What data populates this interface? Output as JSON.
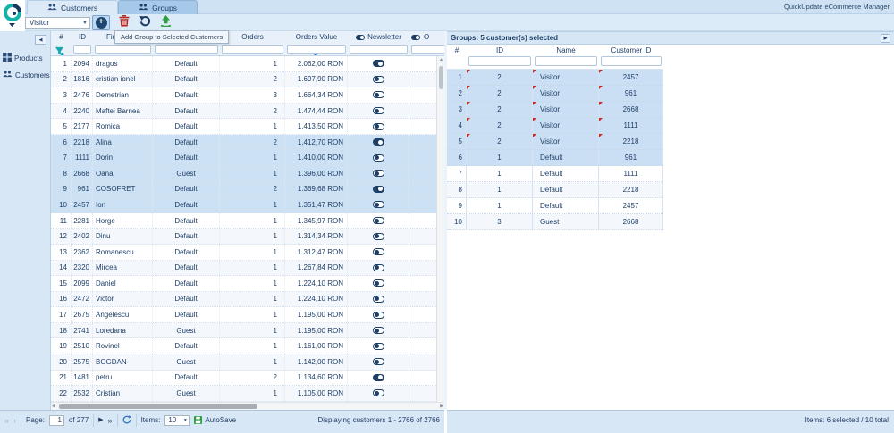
{
  "brand": "QuickUpdate eCommerce Manager",
  "tabs": {
    "customers": "Customers",
    "groups": "Groups"
  },
  "toolbar": {
    "group_combo_value": "Visitor",
    "tooltip": "Add Group to Selected Customers"
  },
  "sidebar": {
    "products": "Products",
    "customers": "Customers"
  },
  "customers_table": {
    "headers": {
      "num": "#",
      "id": "ID",
      "first_name": "First Name",
      "group": "Group",
      "orders": "Orders",
      "orders_value": "Orders Value",
      "newsletter": "Newsletter",
      "optin": "O"
    },
    "rows": [
      {
        "num": 1,
        "id": 2094,
        "name": "dragos",
        "group": "Default",
        "orders": 1,
        "value": "2.062,00 RON",
        "newsletter": true,
        "selected": false
      },
      {
        "num": 2,
        "id": 1816,
        "name": "cristian ionel",
        "group": "Default",
        "orders": 2,
        "value": "1.697,90 RON",
        "newsletter": false,
        "selected": false
      },
      {
        "num": 3,
        "id": 2476,
        "name": "Demetrian",
        "group": "Default",
        "orders": 3,
        "value": "1.664,34 RON",
        "newsletter": false,
        "selected": false
      },
      {
        "num": 4,
        "id": 2240,
        "name": "Maftei Barnea",
        "group": "Default",
        "orders": 2,
        "value": "1.474,44 RON",
        "newsletter": false,
        "selected": false
      },
      {
        "num": 5,
        "id": 2177,
        "name": "Romica",
        "group": "Default",
        "orders": 1,
        "value": "1.413,50 RON",
        "newsletter": false,
        "selected": false
      },
      {
        "num": 6,
        "id": 2218,
        "name": "Alina",
        "group": "Default",
        "orders": 2,
        "value": "1.412,70 RON",
        "newsletter": true,
        "selected": true
      },
      {
        "num": 7,
        "id": 1111,
        "name": "Dorin",
        "group": "Default",
        "orders": 1,
        "value": "1.410,00 RON",
        "newsletter": false,
        "selected": true
      },
      {
        "num": 8,
        "id": 2668,
        "name": "Oana",
        "group": "Guest",
        "orders": 1,
        "value": "1.396,00 RON",
        "newsletter": false,
        "selected": true
      },
      {
        "num": 9,
        "id": 961,
        "name": "COSOFRET",
        "group": "Default",
        "orders": 2,
        "value": "1.369,68 RON",
        "newsletter": true,
        "selected": true
      },
      {
        "num": 10,
        "id": 2457,
        "name": "Ion",
        "group": "Default",
        "orders": 1,
        "value": "1.351,47 RON",
        "newsletter": false,
        "selected": true
      },
      {
        "num": 11,
        "id": 2281,
        "name": "Horge",
        "group": "Default",
        "orders": 1,
        "value": "1.345,97 RON",
        "newsletter": false,
        "selected": false
      },
      {
        "num": 12,
        "id": 2402,
        "name": "Dinu",
        "group": "Default",
        "orders": 1,
        "value": "1.314,34 RON",
        "newsletter": false,
        "selected": false
      },
      {
        "num": 13,
        "id": 2362,
        "name": "Romanescu",
        "group": "Default",
        "orders": 1,
        "value": "1.312,47 RON",
        "newsletter": false,
        "selected": false
      },
      {
        "num": 14,
        "id": 2320,
        "name": "Mircea",
        "group": "Default",
        "orders": 1,
        "value": "1.267,84 RON",
        "newsletter": false,
        "selected": false
      },
      {
        "num": 15,
        "id": 2099,
        "name": "Daniel",
        "group": "Default",
        "orders": 1,
        "value": "1.224,10 RON",
        "newsletter": false,
        "selected": false
      },
      {
        "num": 16,
        "id": 2472,
        "name": "Victor",
        "group": "Default",
        "orders": 1,
        "value": "1.224,10 RON",
        "newsletter": false,
        "selected": false
      },
      {
        "num": 17,
        "id": 2675,
        "name": "Angelescu",
        "group": "Default",
        "orders": 1,
        "value": "1.195,00 RON",
        "newsletter": false,
        "selected": false
      },
      {
        "num": 18,
        "id": 2741,
        "name": "Loredana",
        "group": "Guest",
        "orders": 1,
        "value": "1.195,00 RON",
        "newsletter": false,
        "selected": false
      },
      {
        "num": 19,
        "id": 2510,
        "name": "Rovinel",
        "group": "Default",
        "orders": 1,
        "value": "1.161,00 RON",
        "newsletter": false,
        "selected": false
      },
      {
        "num": 20,
        "id": 2575,
        "name": "BOGDAN",
        "group": "Guest",
        "orders": 1,
        "value": "1.142,00 RON",
        "newsletter": false,
        "selected": false
      },
      {
        "num": 21,
        "id": 1481,
        "name": "petru",
        "group": "Default",
        "orders": 2,
        "value": "1.134,60 RON",
        "newsletter": true,
        "selected": false
      },
      {
        "num": 22,
        "id": 2532,
        "name": "Cristian",
        "group": "Guest",
        "orders": 1,
        "value": "1.105,00 RON",
        "newsletter": false,
        "selected": false
      }
    ]
  },
  "groups_panel": {
    "title": "Groups: 5 customer(s) selected",
    "headers": {
      "num": "#",
      "id": "ID",
      "name": "Name",
      "customer_id": "Customer ID"
    },
    "rows": [
      {
        "num": 1,
        "id": 2,
        "name": "Visitor",
        "customer_id": 2457,
        "modified": true,
        "selected": true
      },
      {
        "num": 2,
        "id": 2,
        "name": "Visitor",
        "customer_id": 961,
        "modified": true,
        "selected": true
      },
      {
        "num": 3,
        "id": 2,
        "name": "Visitor",
        "customer_id": 2668,
        "modified": true,
        "selected": true
      },
      {
        "num": 4,
        "id": 2,
        "name": "Visitor",
        "customer_id": 1111,
        "modified": true,
        "selected": true
      },
      {
        "num": 5,
        "id": 2,
        "name": "Visitor",
        "customer_id": 2218,
        "modified": true,
        "selected": true
      },
      {
        "num": 6,
        "id": 1,
        "name": "Default",
        "customer_id": 961,
        "modified": false,
        "selected": true
      },
      {
        "num": 7,
        "id": 1,
        "name": "Default",
        "customer_id": 1111,
        "modified": false,
        "selected": false
      },
      {
        "num": 8,
        "id": 1,
        "name": "Default",
        "customer_id": 2218,
        "modified": false,
        "selected": false
      },
      {
        "num": 9,
        "id": 1,
        "name": "Default",
        "customer_id": 2457,
        "modified": false,
        "selected": false
      },
      {
        "num": 10,
        "id": 3,
        "name": "Guest",
        "customer_id": 2668,
        "modified": false,
        "selected": false
      }
    ],
    "status": "Items: 6 selected / 10 total"
  },
  "statusbar": {
    "page_label": "Page:",
    "page_value": "1",
    "page_of": "of 277",
    "items_label": "Items:",
    "items_value": "10",
    "autosave": "AutoSave",
    "displaying": "Displaying customers 1 - 2766 of 2766"
  }
}
